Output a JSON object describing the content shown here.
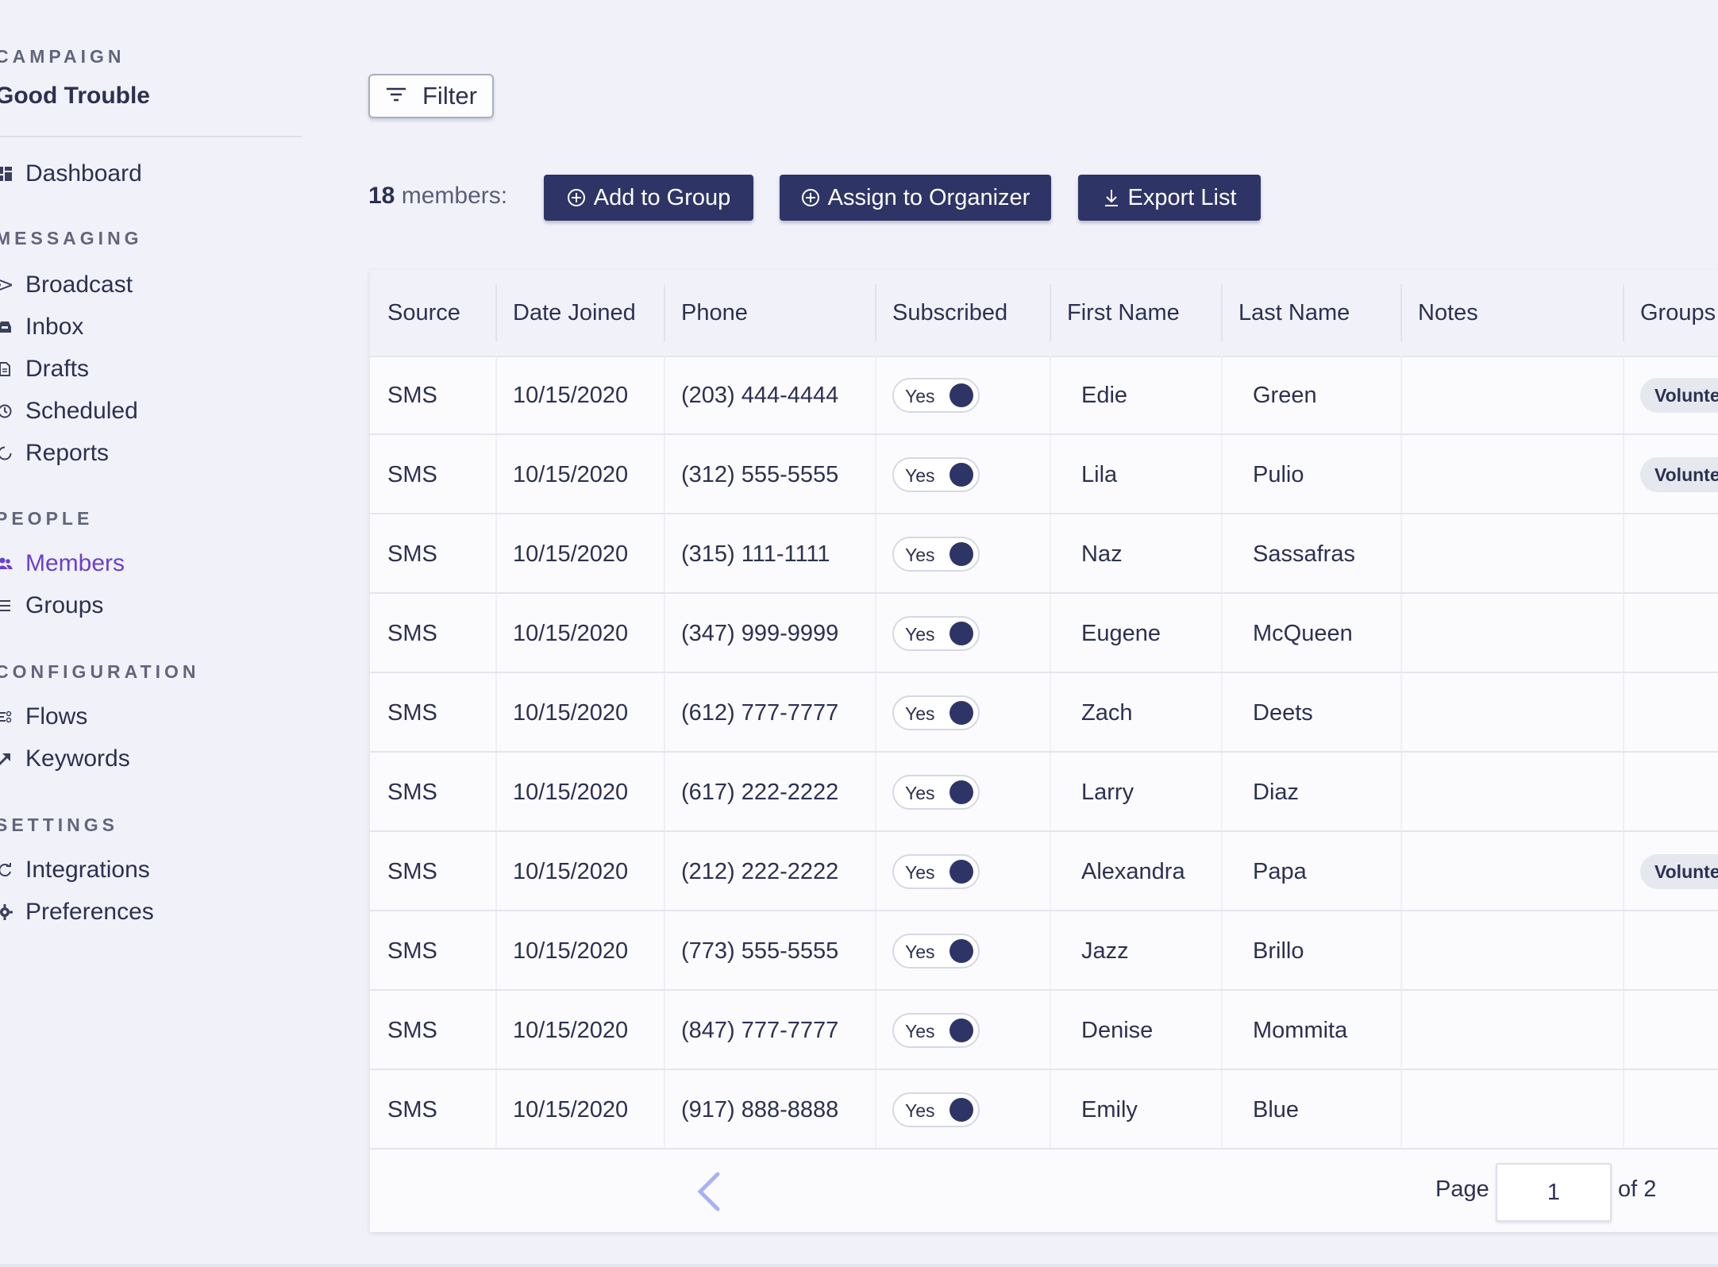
{
  "sidebar": {
    "campaign_label": "CAMPAIGN",
    "campaign_name": "Good Trouble",
    "dashboard": "Dashboard",
    "messaging_label": "MESSAGING",
    "messaging": [
      "Broadcast",
      "Inbox",
      "Drafts",
      "Scheduled",
      "Reports"
    ],
    "people_label": "PEOPLE",
    "people": [
      "Members",
      "Groups"
    ],
    "configuration_label": "CONFIGURATION",
    "configuration": [
      "Flows",
      "Keywords"
    ],
    "settings_label": "SETTINGS",
    "settings": [
      "Integrations",
      "Preferences"
    ],
    "active_item": "Members"
  },
  "toolbar": {
    "filter_label": "Filter",
    "members_count": "18",
    "members_suffix": "members:",
    "add_to_group": "Add to Group",
    "assign_to_organizer": "Assign to Organizer",
    "export_list": "Export List"
  },
  "table": {
    "columns": [
      "Source",
      "Date Joined",
      "Phone",
      "Subscribed",
      "First Name",
      "Last Name",
      "Notes",
      "Groups"
    ],
    "rows": [
      {
        "source": "SMS",
        "date": "10/15/2020",
        "phone": "(203) 444-4444",
        "subscribed": "Yes",
        "first": "Edie",
        "last": "Green",
        "notes": "",
        "group": "Volunte"
      },
      {
        "source": "SMS",
        "date": "10/15/2020",
        "phone": "(312) 555-5555",
        "subscribed": "Yes",
        "first": "Lila",
        "last": "Pulio",
        "notes": "",
        "group": "Volunte"
      },
      {
        "source": "SMS",
        "date": "10/15/2020",
        "phone": "(315) 111-1111",
        "subscribed": "Yes",
        "first": "Naz",
        "last": "Sassafras",
        "notes": "",
        "group": ""
      },
      {
        "source": "SMS",
        "date": "10/15/2020",
        "phone": "(347) 999-9999",
        "subscribed": "Yes",
        "first": "Eugene",
        "last": "McQueen",
        "notes": "",
        "group": ""
      },
      {
        "source": "SMS",
        "date": "10/15/2020",
        "phone": "(612) 777-7777",
        "subscribed": "Yes",
        "first": "Zach",
        "last": "Deets",
        "notes": "",
        "group": ""
      },
      {
        "source": "SMS",
        "date": "10/15/2020",
        "phone": "(617) 222-2222",
        "subscribed": "Yes",
        "first": "Larry",
        "last": "Diaz",
        "notes": "",
        "group": ""
      },
      {
        "source": "SMS",
        "date": "10/15/2020",
        "phone": "(212) 222-2222",
        "subscribed": "Yes",
        "first": "Alexandra",
        "last": "Papa",
        "notes": "",
        "group": "Volunte"
      },
      {
        "source": "SMS",
        "date": "10/15/2020",
        "phone": "(773) 555-5555",
        "subscribed": "Yes",
        "first": "Jazz",
        "last": "Brillo",
        "notes": "",
        "group": ""
      },
      {
        "source": "SMS",
        "date": "10/15/2020",
        "phone": "(847) 777-7777",
        "subscribed": "Yes",
        "first": "Denise",
        "last": "Mommita",
        "notes": "",
        "group": ""
      },
      {
        "source": "SMS",
        "date": "10/15/2020",
        "phone": "(917) 888-8888",
        "subscribed": "Yes",
        "first": "Emily",
        "last": "Blue",
        "notes": "",
        "group": ""
      }
    ]
  },
  "pagination": {
    "page_label": "Page",
    "current_page": "1",
    "of_label": "of 2"
  },
  "colors": {
    "primary": "#2e3566",
    "active": "#6a3fd1",
    "background": "#f1f2f9"
  }
}
